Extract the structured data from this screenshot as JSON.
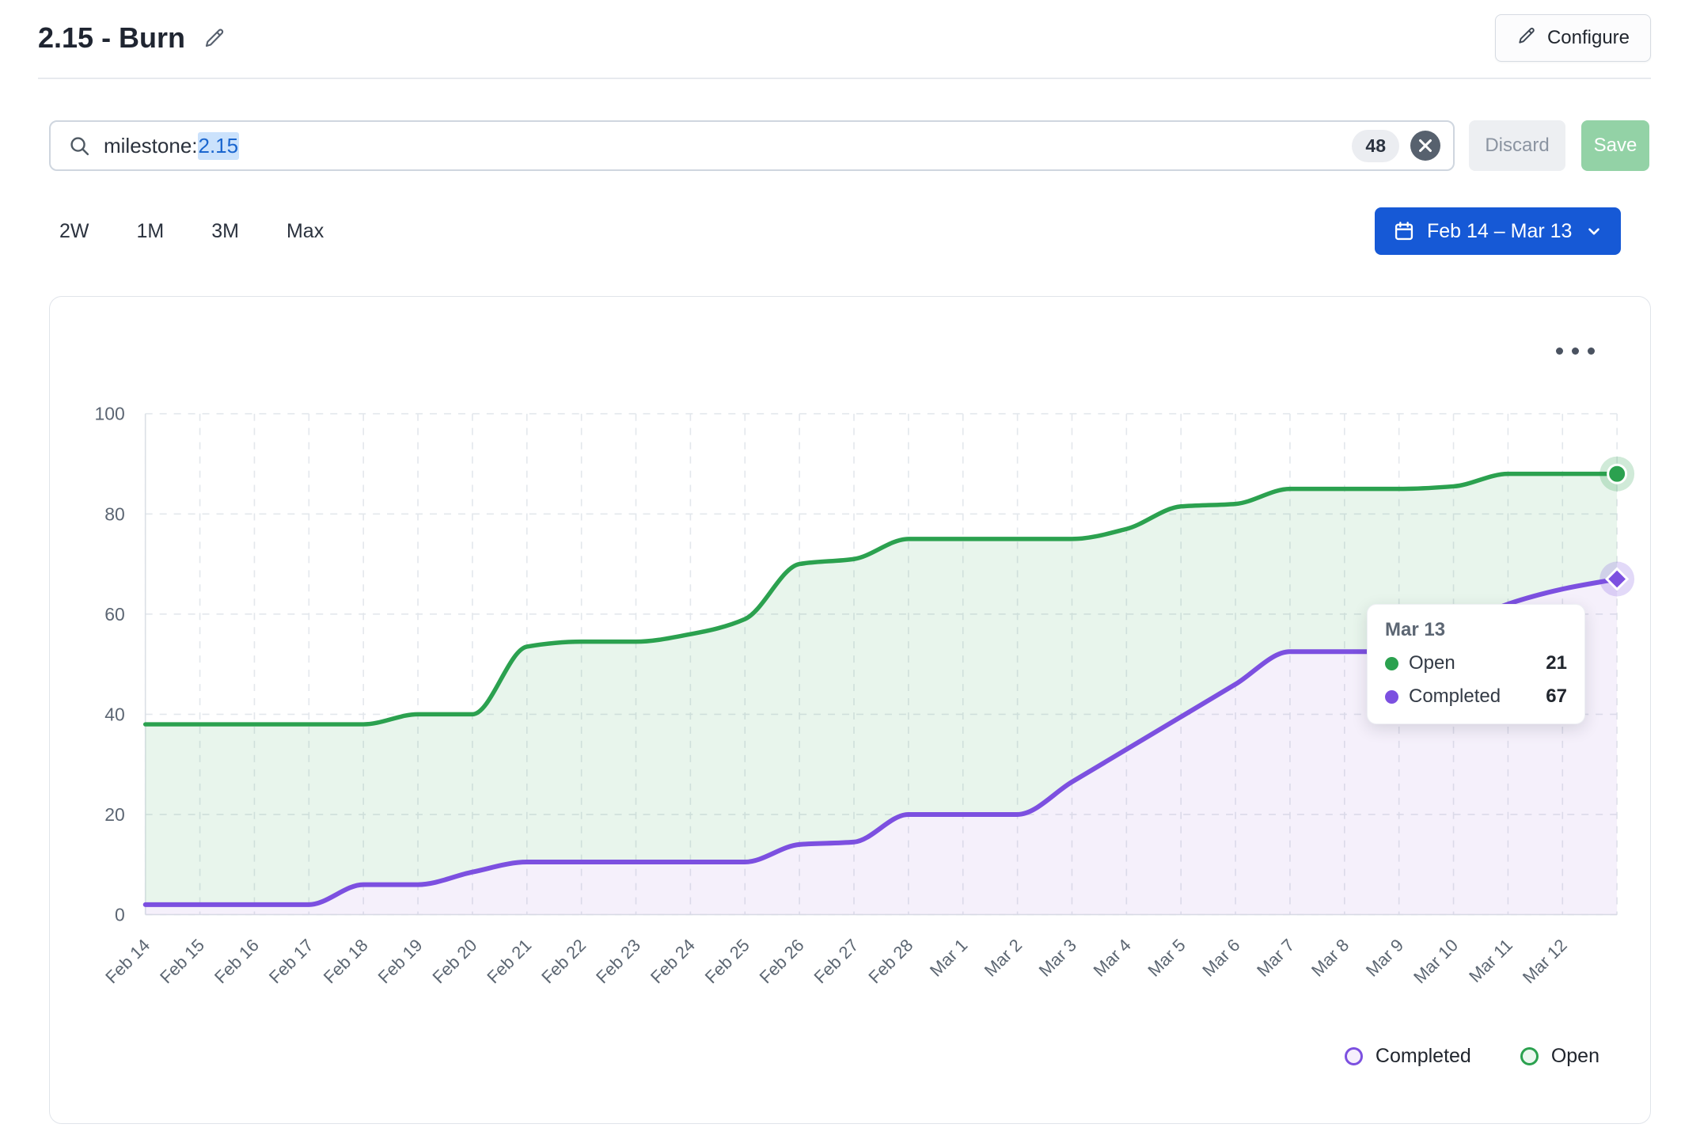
{
  "header": {
    "title": "2.15 - Burn",
    "configure_label": "Configure"
  },
  "filter_bar": {
    "query_prefix": "milestone:",
    "query_highlight": "2.15",
    "result_count": "48",
    "discard_label": "Discard",
    "save_label": "Save"
  },
  "range_tabs": [
    "2W",
    "1M",
    "3M",
    "Max"
  ],
  "date_range_button": {
    "label": "Feb 14 – Mar 13"
  },
  "colors": {
    "accent_blue": "#1659d6",
    "highlight_bg": "#cbe2fc",
    "highlight_text": "#1a66cf",
    "save_bg": "#93d2a6",
    "open_green": "#2ba14f",
    "completed_purple": "#7c50e0"
  },
  "chart_data": {
    "type": "area",
    "title": "",
    "xlabel": "",
    "ylabel": "",
    "ylim": [
      0,
      100
    ],
    "yticks": [
      0,
      20,
      40,
      60,
      80,
      100
    ],
    "grid": true,
    "legend_position": "bottom-right",
    "categories": [
      "Feb 14",
      "Feb 15",
      "Feb 16",
      "Feb 17",
      "Feb 18",
      "Feb 19",
      "Feb 20",
      "Feb 21",
      "Feb 22",
      "Feb 23",
      "Feb 24",
      "Feb 25",
      "Feb 26",
      "Feb 27",
      "Feb 28",
      "Mar 1",
      "Mar 2",
      "Mar 3",
      "Mar 4",
      "Mar 5",
      "Mar 6",
      "Mar 7",
      "Mar 8",
      "Mar 9",
      "Mar 10",
      "Mar 11",
      "Mar 12",
      "Mar 13"
    ],
    "x_tick_labels": [
      "Feb 14",
      "Feb 15",
      "Feb 16",
      "Feb 17",
      "Feb 18",
      "Feb 19",
      "Feb 20",
      "Feb 21",
      "Feb 22",
      "Feb 23",
      "Feb 24",
      "Feb 25",
      "Feb 26",
      "Feb 27",
      "Feb 28",
      "Mar 1",
      "Mar 2",
      "Mar 3",
      "Mar 4",
      "Mar 5",
      "Mar 6",
      "Mar 7",
      "Mar 8",
      "Mar 9",
      "Mar 10",
      "Mar 11",
      "Mar 12"
    ],
    "series": [
      {
        "name": "Open",
        "color": "#2ba14f",
        "fill": "rgba(43,161,79,0.11)",
        "marker": "circle",
        "values": [
          38,
          38,
          38,
          38,
          38,
          40,
          40,
          53.5,
          54.5,
          54.5,
          56,
          59,
          70,
          71,
          75,
          75,
          75,
          75,
          77,
          81.5,
          82,
          85,
          85,
          85,
          85.5,
          88,
          88,
          88
        ]
      },
      {
        "name": "Completed",
        "color": "#7c50e0",
        "fill": "rgba(148,87,212,0.09)",
        "marker": "diamond",
        "values": [
          2,
          2,
          2,
          2,
          6,
          6,
          8.5,
          10.5,
          10.5,
          10.5,
          10.5,
          10.5,
          14,
          14.5,
          20,
          20,
          20,
          26.5,
          33,
          39.5,
          46,
          52.5,
          52.5,
          52.5,
          57,
          62,
          65,
          67
        ]
      }
    ],
    "legend": [
      {
        "label": "Completed",
        "color": "#7c50e0",
        "fill": "#f6effc"
      },
      {
        "label": "Open",
        "color": "#2ba14f",
        "fill": "#ebf7ef"
      }
    ]
  },
  "tooltip": {
    "date": "Mar 13",
    "rows": [
      {
        "label": "Open",
        "value": "21",
        "color": "#2ba14f"
      },
      {
        "label": "Completed",
        "value": "67",
        "color": "#7c50e0"
      }
    ]
  }
}
